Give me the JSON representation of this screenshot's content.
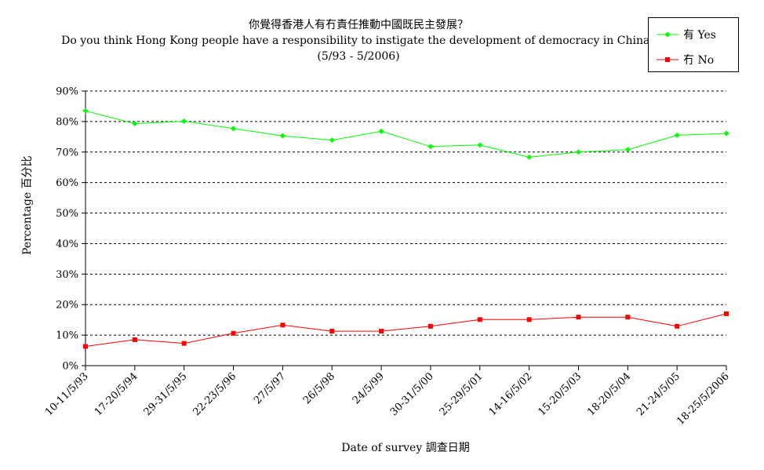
{
  "chart_data": {
    "type": "line",
    "title": "你覺得香港人有冇責任推動中國既民主發展？",
    "subtitle": "Do you think Hong Kong people have a responsibility to instigate the development of democracy in China?",
    "period": "(5/93 - 5/2006)",
    "xlabel": "Date of survey  調查日期",
    "ylabel": "Percentage  百分比",
    "ylim": [
      0,
      90
    ],
    "y_ticks": [
      "0%",
      "10%",
      "20%",
      "30%",
      "40%",
      "50%",
      "60%",
      "70%",
      "80%",
      "90%"
    ],
    "grid": true,
    "legend_position": "top-right",
    "categories": [
      "10-11/5/93",
      "17-20/5/94",
      "29-31/5/95",
      "22-23/5/96",
      "27/5/97",
      "26/5/98",
      "24/5/99",
      "30-31/5/00",
      "25-29/5/01",
      "14-16/5/02",
      "15-20/5/03",
      "18-20/5/04",
      "21-24/5/05",
      "18-25/5/2006"
    ],
    "series": [
      {
        "name": "有 Yes",
        "color": "#00ff00",
        "marker": "diamond",
        "values": [
          83.5,
          79.3,
          80.1,
          77.7,
          75.3,
          73.9,
          76.8,
          71.8,
          72.3,
          68.3,
          70.0,
          70.8,
          75.5,
          76.1
        ]
      },
      {
        "name": "冇 No",
        "color": "#ff0000",
        "marker": "square",
        "values": [
          6.3,
          8.5,
          7.3,
          10.6,
          13.3,
          11.3,
          11.3,
          12.9,
          15.1,
          15.1,
          15.9,
          15.9,
          12.9,
          17.0
        ]
      }
    ]
  }
}
